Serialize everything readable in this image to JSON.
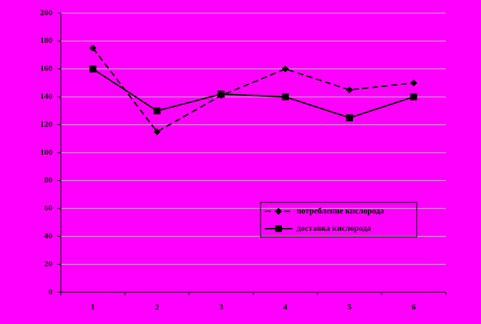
{
  "chart_data": {
    "type": "line",
    "categories": [
      "1",
      "2",
      "3",
      "4",
      "5",
      "6"
    ],
    "series": [
      {
        "name": "потребление кислорода",
        "color": "#000000",
        "line_style": "dashed",
        "marker": "diamond",
        "values": [
          175,
          115,
          141,
          160,
          145,
          150
        ]
      },
      {
        "name": "доставка кислорода",
        "color": "#000000",
        "line_style": "solid",
        "marker": "square",
        "values": [
          160,
          130,
          142,
          140,
          125,
          140
        ]
      }
    ],
    "ylim": [
      0,
      200
    ],
    "yticks": [
      0,
      20,
      40,
      60,
      80,
      100,
      120,
      140,
      160,
      180,
      200
    ],
    "grid": true,
    "background": "#ff00ff",
    "legend": "lower right"
  }
}
